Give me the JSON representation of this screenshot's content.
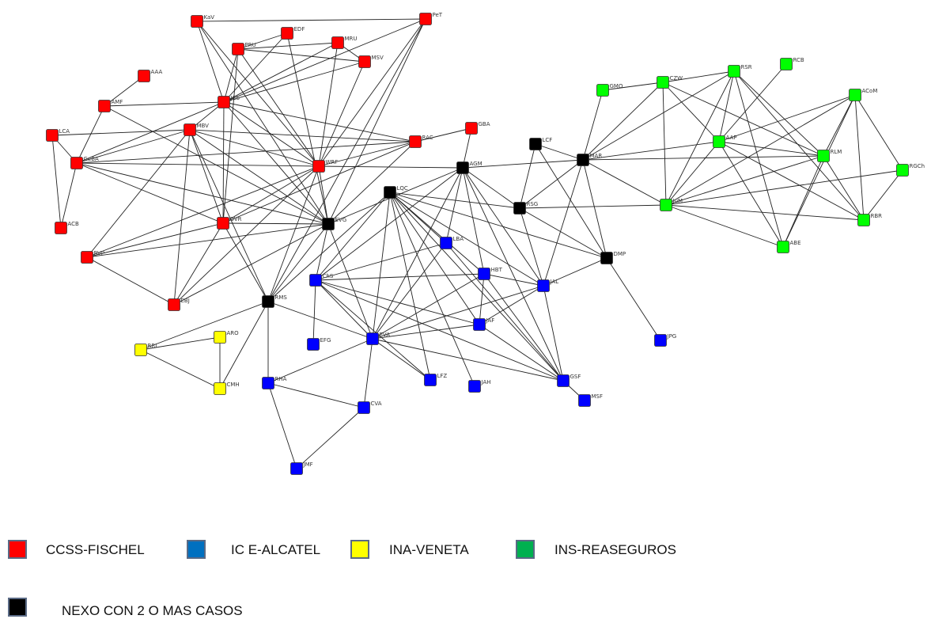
{
  "colors": {
    "CCSS": "#ff0000",
    "ICE": "#0000ff",
    "INA": "#ffff00",
    "INS": "#00ff00",
    "NEXO": "#000000",
    "edge": "#222222",
    "legend_ccss": "#ff0000",
    "legend_ice": "#0070c0",
    "legend_ina": "#ffff00",
    "legend_ins": "#00b050",
    "legend_nexo": "#000000",
    "legend_border": "#5a6a85"
  },
  "legend": {
    "ccss": "CCSS-FISCHEL",
    "ice": "IC E-ALCATEL",
    "ina": "INA-VENETA",
    "ins": "INS-REASEGUROS",
    "nexo": "NEXO CON 2 O MAS CASOS"
  },
  "nodes": [
    {
      "id": "KaV",
      "group": "CCSS"
    },
    {
      "id": "PeT",
      "group": "CCSS"
    },
    {
      "id": "EDF",
      "group": "CCSS"
    },
    {
      "id": "PRU",
      "group": "CCSS"
    },
    {
      "id": "MRU",
      "group": "CCSS"
    },
    {
      "id": "MSV",
      "group": "CCSS"
    },
    {
      "id": "AAA",
      "group": "CCSS"
    },
    {
      "id": "AMF",
      "group": "CCSS"
    },
    {
      "id": "JCS",
      "group": "CCSS"
    },
    {
      "id": "LCA",
      "group": "CCSS"
    },
    {
      "id": "MBV",
      "group": "CCSS"
    },
    {
      "id": "GeBA",
      "group": "CCSS"
    },
    {
      "id": "WRF",
      "group": "CCSS"
    },
    {
      "id": "RAC",
      "group": "CCSS"
    },
    {
      "id": "GBA",
      "group": "CCSS"
    },
    {
      "id": "ACB",
      "group": "CCSS"
    },
    {
      "id": "OVR",
      "group": "CCSS"
    },
    {
      "id": "RVP",
      "group": "CCSS"
    },
    {
      "id": "EBJ",
      "group": "CCSS"
    },
    {
      "id": "AGM",
      "group": "NEXO"
    },
    {
      "id": "LCF",
      "group": "NEXO"
    },
    {
      "id": "MAR",
      "group": "NEXO"
    },
    {
      "id": "LQC",
      "group": "NEXO"
    },
    {
      "id": "RSG",
      "group": "NEXO"
    },
    {
      "id": "EVG",
      "group": "NEXO"
    },
    {
      "id": "DMP",
      "group": "NEXO"
    },
    {
      "id": "RMS",
      "group": "NEXO"
    },
    {
      "id": "LBA",
      "group": "ICE"
    },
    {
      "id": "ChS",
      "group": "ICE"
    },
    {
      "id": "HBT",
      "group": "ICE"
    },
    {
      "id": "JAL",
      "group": "ICE"
    },
    {
      "id": "JAF",
      "group": "ICE"
    },
    {
      "id": "EFG",
      "group": "ICE"
    },
    {
      "id": "EVA",
      "group": "ICE"
    },
    {
      "id": "JPG",
      "group": "ICE"
    },
    {
      "id": "RHA",
      "group": "ICE"
    },
    {
      "id": "LFZ",
      "group": "ICE"
    },
    {
      "id": "JAH",
      "group": "ICE"
    },
    {
      "id": "GSF",
      "group": "ICE"
    },
    {
      "id": "MSF",
      "group": "ICE"
    },
    {
      "id": "CVA",
      "group": "ICE"
    },
    {
      "id": "JMF",
      "group": "ICE"
    },
    {
      "id": "RRL",
      "group": "INA"
    },
    {
      "id": "ARO",
      "group": "INA"
    },
    {
      "id": "CMH",
      "group": "INA"
    },
    {
      "id": "GMO",
      "group": "INS"
    },
    {
      "id": "CZW",
      "group": "INS"
    },
    {
      "id": "RSR",
      "group": "INS"
    },
    {
      "id": "RCB",
      "group": "INS"
    },
    {
      "id": "ACoM",
      "group": "INS"
    },
    {
      "id": "AAP",
      "group": "INS"
    },
    {
      "id": "RLM",
      "group": "INS"
    },
    {
      "id": "RGCh",
      "group": "INS"
    },
    {
      "id": "JuM",
      "group": "INS"
    },
    {
      "id": "RBR",
      "group": "INS"
    },
    {
      "id": "ABE",
      "group": "INS"
    }
  ],
  "edges": [
    [
      "KaV",
      "PeT"
    ],
    [
      "KaV",
      "JCS"
    ],
    [
      "KaV",
      "WRF"
    ],
    [
      "KaV",
      "EVG"
    ],
    [
      "PeT",
      "WRF"
    ],
    [
      "PeT",
      "EVG"
    ],
    [
      "PeT",
      "JCS"
    ],
    [
      "PeT",
      "RMS"
    ],
    [
      "EDF",
      "JCS"
    ],
    [
      "EDF",
      "EVG"
    ],
    [
      "EDF",
      "PRU"
    ],
    [
      "PRU",
      "MSV"
    ],
    [
      "PRU",
      "JCS"
    ],
    [
      "PRU",
      "WRF"
    ],
    [
      "PRU",
      "OVR"
    ],
    [
      "MRU",
      "JCS"
    ],
    [
      "MRU",
      "WRF"
    ],
    [
      "MRU",
      "MSV"
    ],
    [
      "MRU",
      "PRU"
    ],
    [
      "MSV",
      "JCS"
    ],
    [
      "MSV",
      "WRF"
    ],
    [
      "AAA",
      "AMF"
    ],
    [
      "AMF",
      "JCS"
    ],
    [
      "AMF",
      "GeBA"
    ],
    [
      "AMF",
      "EVG"
    ],
    [
      "JCS",
      "MBV"
    ],
    [
      "JCS",
      "WRF"
    ],
    [
      "JCS",
      "RAC"
    ],
    [
      "JCS",
      "OVR"
    ],
    [
      "JCS",
      "GeBA"
    ],
    [
      "JCS",
      "EVG"
    ],
    [
      "LCA",
      "MBV"
    ],
    [
      "LCA",
      "GeBA"
    ],
    [
      "LCA",
      "ACB"
    ],
    [
      "MBV",
      "GeBA"
    ],
    [
      "MBV",
      "WRF"
    ],
    [
      "MBV",
      "OVR"
    ],
    [
      "MBV",
      "EVG"
    ],
    [
      "MBV",
      "EBJ"
    ],
    [
      "MBV",
      "RAC"
    ],
    [
      "MBV",
      "RMS"
    ],
    [
      "MBV",
      "RVP"
    ],
    [
      "GeBA",
      "WRF"
    ],
    [
      "GeBA",
      "RAC"
    ],
    [
      "GeBA",
      "EVG"
    ],
    [
      "GeBA",
      "OVR"
    ],
    [
      "GeBA",
      "ACB"
    ],
    [
      "WRF",
      "RAC"
    ],
    [
      "WRF",
      "EVG"
    ],
    [
      "WRF",
      "RMS"
    ],
    [
      "WRF",
      "RVP"
    ],
    [
      "WRF",
      "OVR"
    ],
    [
      "WRF",
      "AGM"
    ],
    [
      "WRF",
      "EBJ"
    ],
    [
      "RAC",
      "GBA"
    ],
    [
      "RAC",
      "EVG"
    ],
    [
      "RAC",
      "OVR"
    ],
    [
      "GBA",
      "AGM"
    ],
    [
      "OVR",
      "EVG"
    ],
    [
      "OVR",
      "RMS"
    ],
    [
      "OVR",
      "EBJ"
    ],
    [
      "OVR",
      "RVP"
    ],
    [
      "RVP",
      "EVG"
    ],
    [
      "RVP",
      "EBJ"
    ],
    [
      "EVG",
      "RMS"
    ],
    [
      "EVG",
      "ChS"
    ],
    [
      "EVG",
      "EVA"
    ],
    [
      "EVG",
      "AGM"
    ],
    [
      "EVG",
      "EBJ"
    ],
    [
      "AGM",
      "MAR"
    ],
    [
      "AGM",
      "EVA"
    ],
    [
      "AGM",
      "LBA"
    ],
    [
      "AGM",
      "HBT"
    ],
    [
      "AGM",
      "JAL"
    ],
    [
      "AGM",
      "RSG"
    ],
    [
      "AGM",
      "ChS"
    ],
    [
      "AGM",
      "GSF"
    ],
    [
      "LCF",
      "MAR"
    ],
    [
      "LCF",
      "RSG"
    ],
    [
      "LCF",
      "DMP"
    ],
    [
      "MAR",
      "RSG"
    ],
    [
      "MAR",
      "DMP"
    ],
    [
      "MAR",
      "JAL"
    ],
    [
      "MAR",
      "GMO"
    ],
    [
      "MAR",
      "CZW"
    ],
    [
      "MAR",
      "RSR"
    ],
    [
      "MAR",
      "JuM"
    ],
    [
      "MAR",
      "AAP"
    ],
    [
      "MAR",
      "RLM"
    ],
    [
      "LQC",
      "RSG"
    ],
    [
      "LQC",
      "DMP"
    ],
    [
      "LQC",
      "ChS"
    ],
    [
      "LQC",
      "EVA"
    ],
    [
      "LQC",
      "LBA"
    ],
    [
      "LQC",
      "HBT"
    ],
    [
      "LQC",
      "JAL"
    ],
    [
      "LQC",
      "JAF"
    ],
    [
      "LQC",
      "LFZ"
    ],
    [
      "LQC",
      "JAH"
    ],
    [
      "LQC",
      "GSF"
    ],
    [
      "LQC",
      "RMS"
    ],
    [
      "RSG",
      "DMP"
    ],
    [
      "RSG",
      "JAL"
    ],
    [
      "RSG",
      "JuM"
    ],
    [
      "DMP",
      "JPG"
    ],
    [
      "DMP",
      "JAL"
    ],
    [
      "RMS",
      "RRL"
    ],
    [
      "RMS",
      "CMH"
    ],
    [
      "RMS",
      "RHA"
    ],
    [
      "RMS",
      "EVA"
    ],
    [
      "LBA",
      "ChS"
    ],
    [
      "LBA",
      "GSF"
    ],
    [
      "LBA",
      "EVA"
    ],
    [
      "ChS",
      "HBT"
    ],
    [
      "ChS",
      "EFG"
    ],
    [
      "ChS",
      "EVA"
    ],
    [
      "ChS",
      "JAF"
    ],
    [
      "ChS",
      "GSF"
    ],
    [
      "ChS",
      "LFZ"
    ],
    [
      "HBT",
      "JAL"
    ],
    [
      "HBT",
      "JAF"
    ],
    [
      "HBT",
      "GSF"
    ],
    [
      "HBT",
      "EVA"
    ],
    [
      "JAL",
      "JAF"
    ],
    [
      "JAL",
      "EVA"
    ],
    [
      "JAL",
      "GSF"
    ],
    [
      "JAF",
      "EVA"
    ],
    [
      "JAF",
      "GSF"
    ],
    [
      "EVA",
      "RHA"
    ],
    [
      "EVA",
      "CVA"
    ],
    [
      "EVA",
      "LFZ"
    ],
    [
      "EVA",
      "GSF"
    ],
    [
      "RHA",
      "CVA"
    ],
    [
      "RHA",
      "JMF"
    ],
    [
      "CVA",
      "JMF"
    ],
    [
      "GSF",
      "MSF"
    ],
    [
      "RRL",
      "ARO"
    ],
    [
      "RRL",
      "CMH"
    ],
    [
      "ARO",
      "CMH"
    ],
    [
      "GMO",
      "CZW"
    ],
    [
      "CZW",
      "AAP"
    ],
    [
      "CZW",
      "JuM"
    ],
    [
      "CZW",
      "RSR"
    ],
    [
      "CZW",
      "RLM"
    ],
    [
      "RSR",
      "AAP"
    ],
    [
      "RSR",
      "JuM"
    ],
    [
      "RSR",
      "RBR"
    ],
    [
      "RSR",
      "ABE"
    ],
    [
      "RSR",
      "RLM"
    ],
    [
      "RCB",
      "AAP"
    ],
    [
      "ACoM",
      "AAP"
    ],
    [
      "ACoM",
      "RLM"
    ],
    [
      "ACoM",
      "JuM"
    ],
    [
      "ACoM",
      "RBR"
    ],
    [
      "ACoM",
      "RGCh"
    ],
    [
      "ACoM",
      "ABE"
    ],
    [
      "AAP",
      "JuM"
    ],
    [
      "AAP",
      "RLM"
    ],
    [
      "AAP",
      "ABE"
    ],
    [
      "AAP",
      "RBR"
    ],
    [
      "RLM",
      "JuM"
    ],
    [
      "RLM",
      "RBR"
    ],
    [
      "RLM",
      "ABE"
    ],
    [
      "RGCh",
      "JuM"
    ],
    [
      "RGCh",
      "RBR"
    ],
    [
      "JuM",
      "RBR"
    ],
    [
      "JuM",
      "ABE"
    ]
  ]
}
